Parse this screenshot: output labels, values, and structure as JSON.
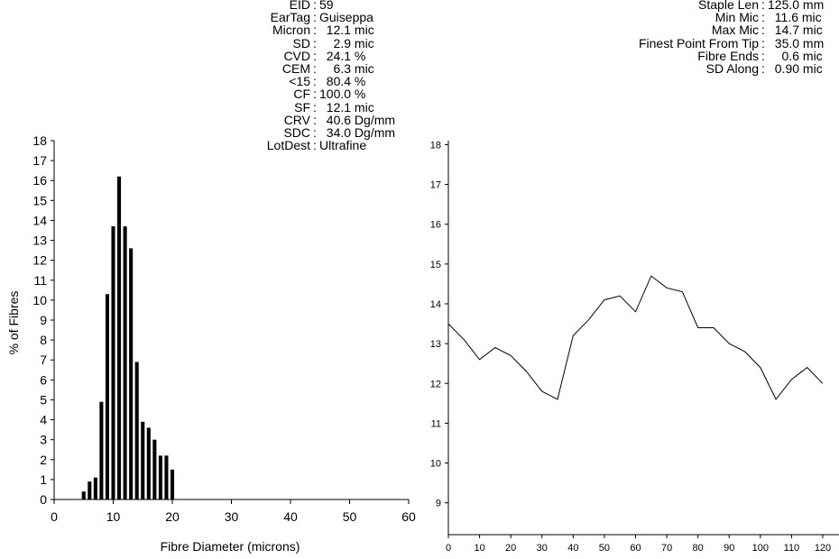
{
  "stats_left": [
    {
      "label": "EID",
      "value": "59"
    },
    {
      "label": "EarTag",
      "value": "Guiseppa"
    },
    {
      "label": "Micron",
      "value": "  12.1 mic"
    },
    {
      "label": "SD",
      "value": "    2.9 mic"
    },
    {
      "label": "CVD",
      "value": "  24.1 %"
    },
    {
      "label": "CEM",
      "value": "    6.3 mic"
    },
    {
      "label": "<15",
      "value": "  80.4 %"
    },
    {
      "label": "CF",
      "value": "100.0 %"
    },
    {
      "label": "SF",
      "value": "  12.1 mic"
    },
    {
      "label": "CRV",
      "value": "  40.6 Dg/mm"
    },
    {
      "label": "SDC",
      "value": "  34.0 Dg/mm"
    },
    {
      "label": "LotDest",
      "value": "Ultrafine"
    }
  ],
  "stats_right": [
    {
      "label": "Staple Len",
      "value": "125.0 mm"
    },
    {
      "label": "Min Mic",
      "value": "  11.6 mic"
    },
    {
      "label": "Max Mic",
      "value": "  14.7 mic"
    },
    {
      "label": "Finest Point From Tip",
      "value": "  35.0 mm"
    },
    {
      "label": "Fibre Ends",
      "value": "    0.6 mic"
    },
    {
      "label": "SD Along",
      "value": "  0.90 mic"
    }
  ],
  "chart_data": [
    {
      "type": "bar",
      "xlabel": "Fibre Diameter (microns)",
      "ylabel": "% of Fibres",
      "xlim": [
        0,
        60
      ],
      "ylim": [
        0,
        18
      ],
      "xticks": [
        0,
        10,
        20,
        30,
        40,
        50,
        60
      ],
      "yticks": [
        0,
        1,
        2,
        3,
        4,
        5,
        6,
        7,
        8,
        9,
        10,
        11,
        12,
        13,
        14,
        15,
        16,
        17,
        18
      ],
      "x": [
        5,
        6,
        7,
        8,
        9,
        10,
        11,
        12,
        13,
        14,
        15,
        16,
        17,
        18,
        19,
        20
      ],
      "values": [
        0.4,
        0.9,
        1.1,
        4.9,
        10.3,
        13.7,
        16.2,
        13.7,
        12.6,
        6.9,
        3.9,
        3.6,
        3.0,
        2.2,
        2.2,
        1.5
      ]
    },
    {
      "type": "line",
      "xlim": [
        0,
        120
      ],
      "ylim": [
        8.2,
        18.1
      ],
      "xticks": [
        0,
        10,
        20,
        30,
        40,
        50,
        60,
        70,
        80,
        90,
        100,
        110,
        120
      ],
      "yticks": [
        9,
        10,
        11,
        12,
        13,
        14,
        15,
        16,
        17,
        18
      ],
      "x": [
        0,
        5,
        10,
        15,
        20,
        25,
        30,
        35,
        40,
        45,
        50,
        55,
        60,
        65,
        70,
        75,
        80,
        85,
        90,
        95,
        100,
        105,
        110,
        115,
        120
      ],
      "y": [
        13.5,
        13.1,
        12.6,
        12.9,
        12.7,
        12.3,
        11.8,
        11.6,
        13.2,
        13.6,
        14.1,
        14.2,
        13.8,
        14.7,
        14.4,
        14.3,
        13.4,
        13.4,
        13.0,
        12.8,
        12.4,
        11.6,
        12.1,
        12.4,
        12.0
      ]
    }
  ]
}
